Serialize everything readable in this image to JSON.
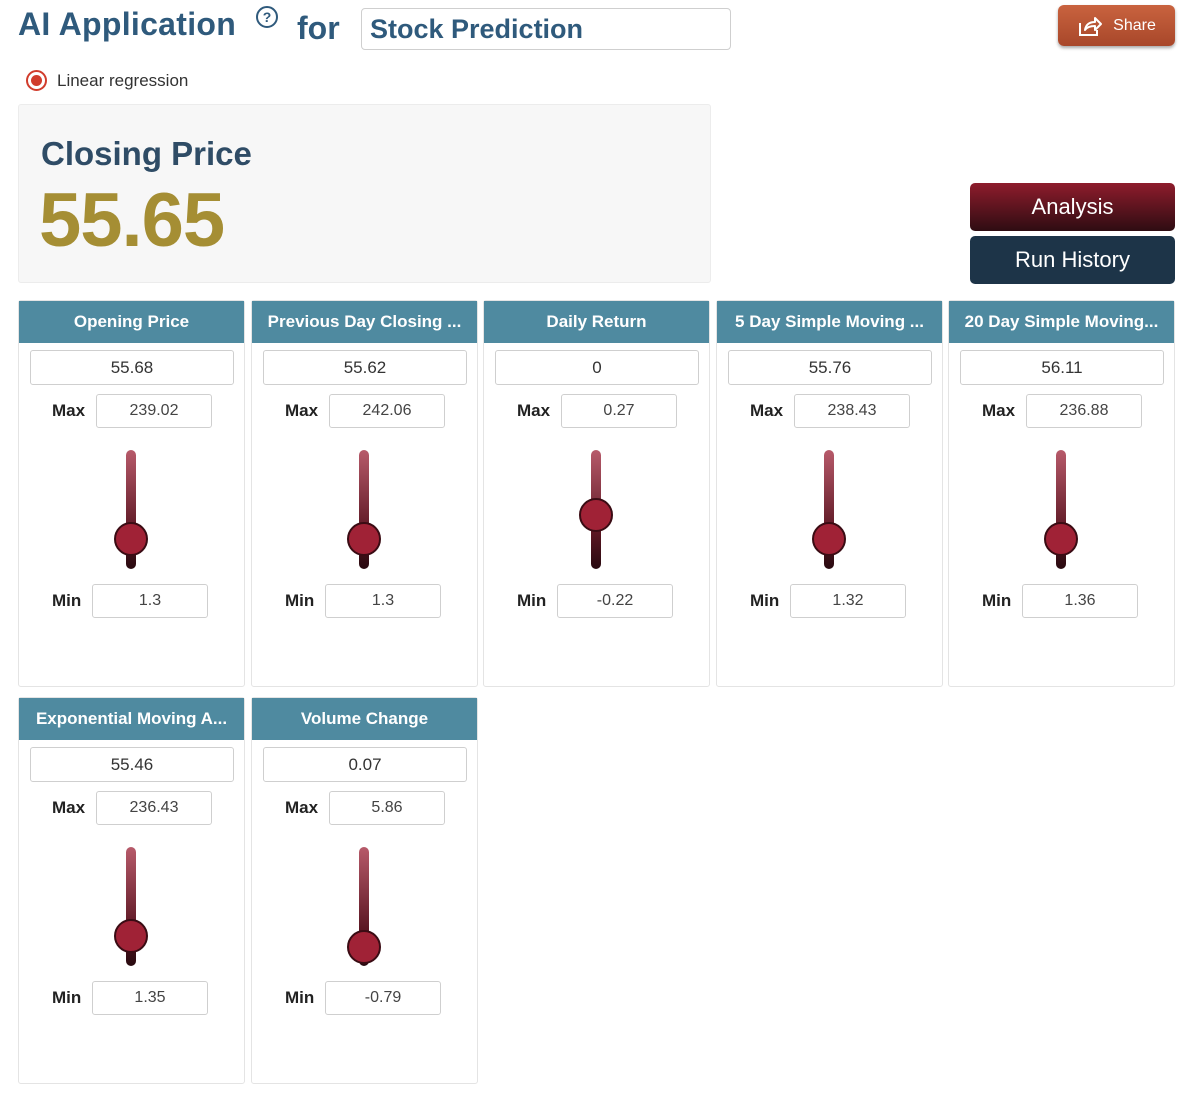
{
  "header": {
    "title": "AI Application",
    "for_label": "for",
    "app_name": "Stock Prediction",
    "share_label": "Share"
  },
  "model": {
    "selected": "Linear regression"
  },
  "result": {
    "label": "Closing Price",
    "value": "55.65"
  },
  "buttons": {
    "analysis": "Analysis",
    "run_history": "Run History"
  },
  "colors": {
    "title": "#2f5a7c",
    "header_bar": "#4f8aa0",
    "accent_value": "#a58e34",
    "analysis_button": "#8e1c2c",
    "history_button": "#1d3448",
    "share_button": "#c9633f",
    "slider_thumb": "#a02236"
  },
  "icons": {
    "help": "question-circle-icon",
    "share": "share-arrow-icon"
  },
  "labels": {
    "max": "Max",
    "min": "Min"
  },
  "features": [
    {
      "name": "Opening Price",
      "value": "55.68",
      "max": "239.02",
      "min": "1.3",
      "fraction": 0.23
    },
    {
      "name": "Previous Day Closing ...",
      "value": "55.62",
      "max": "242.06",
      "min": "1.3",
      "fraction": 0.23
    },
    {
      "name": "Daily Return",
      "value": "0",
      "max": "0.27",
      "min": "-0.22",
      "fraction": 0.45
    },
    {
      "name": "5 Day Simple Moving ...",
      "value": "55.76",
      "max": "238.43",
      "min": "1.32",
      "fraction": 0.23
    },
    {
      "name": "20 Day Simple Moving...",
      "value": "56.11",
      "max": "236.88",
      "min": "1.36",
      "fraction": 0.23
    },
    {
      "name": "Exponential Moving A...",
      "value": "55.46",
      "max": "236.43",
      "min": "1.35",
      "fraction": 0.23
    },
    {
      "name": "Volume Change",
      "value": "0.07",
      "max": "5.86",
      "min": "-0.79",
      "fraction": 0.13
    }
  ]
}
